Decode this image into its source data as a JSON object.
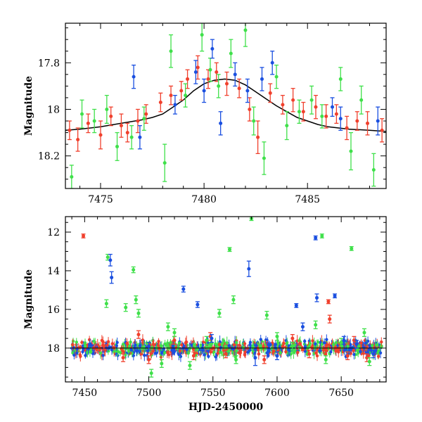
{
  "colors": {
    "red": "#f0402d",
    "green": "#3fe04a",
    "blue": "#1a4fe0",
    "model": "#000000"
  },
  "chart_data": [
    {
      "type": "scatter",
      "title": "",
      "xlabel": "",
      "ylabel": "Magnitude",
      "xlim": [
        7473.3,
        7488.8
      ],
      "ylim": [
        18.34,
        17.63
      ],
      "y_inverted": true,
      "xticks": [
        7475,
        7480,
        7485
      ],
      "yticks": [
        17.8,
        18,
        18.2
      ],
      "xtick_labels": [
        "7475",
        "7480",
        "7485"
      ],
      "ytick_labels": [
        "17.8",
        "18",
        "18.2"
      ],
      "model_curve": {
        "color": "black",
        "points": [
          [
            7473.3,
            18.09
          ],
          [
            7474,
            18.085
          ],
          [
            7475,
            18.075
          ],
          [
            7476,
            18.06
          ],
          [
            7477,
            18.045
          ],
          [
            7477.5,
            18.035
          ],
          [
            7478,
            18.02
          ],
          [
            7478.5,
            17.99
          ],
          [
            7479,
            17.96
          ],
          [
            7479.5,
            17.92
          ],
          [
            7480,
            17.89
          ],
          [
            7480.5,
            17.875
          ],
          [
            7481,
            17.87
          ],
          [
            7481.5,
            17.875
          ],
          [
            7482,
            17.895
          ],
          [
            7482.5,
            17.925
          ],
          [
            7483,
            17.955
          ],
          [
            7483.5,
            17.985
          ],
          [
            7484,
            18.01
          ],
          [
            7484.5,
            18.035
          ],
          [
            7485,
            18.05
          ],
          [
            7485.5,
            18.065
          ],
          [
            7486,
            18.075
          ],
          [
            7487,
            18.085
          ],
          [
            7488,
            18.09
          ],
          [
            7488.8,
            18.095
          ]
        ]
      },
      "series": [
        {
          "color": "red",
          "points": [
            [
              7473.5,
              18.09
            ],
            [
              7473.9,
              18.13
            ],
            [
              7474.4,
              18.06
            ],
            [
              7475.0,
              18.11
            ],
            [
              7475.5,
              18.03
            ],
            [
              7476.0,
              18.07
            ],
            [
              7476.3,
              18.1
            ],
            [
              7476.8,
              18.05
            ],
            [
              7477.2,
              18.02
            ],
            [
              7477.9,
              17.97
            ],
            [
              7478.4,
              17.94
            ],
            [
              7478.9,
              17.92
            ],
            [
              7479.2,
              17.87
            ],
            [
              7479.7,
              17.82
            ],
            [
              7480.2,
              17.87
            ],
            [
              7480.6,
              17.84
            ],
            [
              7481.1,
              17.89
            ],
            [
              7481.7,
              17.91
            ],
            [
              7482.2,
              18.0
            ],
            [
              7482.6,
              18.12
            ],
            [
              7483.2,
              17.93
            ],
            [
              7483.8,
              17.98
            ],
            [
              7484.3,
              17.96
            ],
            [
              7484.8,
              18.01
            ],
            [
              7485.4,
              17.99
            ],
            [
              7485.9,
              18.03
            ],
            [
              7486.4,
              18.02
            ],
            [
              7486.9,
              18.08
            ],
            [
              7487.4,
              18.05
            ],
            [
              7487.9,
              18.06
            ],
            [
              7488.6,
              18.09
            ]
          ],
          "errors": [
            0.04,
            0.05,
            0.04,
            0.06,
            0.04,
            0.05,
            0.04,
            0.05,
            0.04,
            0.04,
            0.04,
            0.04,
            0.04,
            0.05,
            0.04,
            0.04,
            0.05,
            0.04,
            0.05,
            0.07,
            0.04,
            0.04,
            0.05,
            0.04,
            0.05,
            0.05,
            0.04,
            0.05,
            0.04,
            0.05,
            0.05
          ]
        },
        {
          "color": "green",
          "points": [
            [
              7473.6,
              18.29
            ],
            [
              7474.1,
              18.02
            ],
            [
              7474.7,
              18.05
            ],
            [
              7475.3,
              18.0
            ],
            [
              7475.8,
              18.16
            ],
            [
              7476.5,
              18.12
            ],
            [
              7477.1,
              18.04
            ],
            [
              7478.1,
              18.23
            ],
            [
              7478.4,
              17.75
            ],
            [
              7479.1,
              17.94
            ],
            [
              7479.9,
              17.68
            ],
            [
              7480.3,
              17.83
            ],
            [
              7480.7,
              17.9
            ],
            [
              7481.3,
              17.76
            ],
            [
              7482.0,
              17.66
            ],
            [
              7482.4,
              18.05
            ],
            [
              7482.9,
              18.21
            ],
            [
              7483.5,
              17.86
            ],
            [
              7484.0,
              18.07
            ],
            [
              7484.6,
              18.01
            ],
            [
              7485.2,
              17.96
            ],
            [
              7485.7,
              18.03
            ],
            [
              7486.6,
              17.87
            ],
            [
              7487.1,
              18.18
            ],
            [
              7487.6,
              17.96
            ],
            [
              7488.2,
              18.26
            ]
          ],
          "errors": [
            0.05,
            0.06,
            0.05,
            0.06,
            0.06,
            0.05,
            0.05,
            0.08,
            0.07,
            0.05,
            0.07,
            0.05,
            0.05,
            0.06,
            0.07,
            0.06,
            0.07,
            0.05,
            0.06,
            0.05,
            0.06,
            0.05,
            0.05,
            0.08,
            0.06,
            0.07
          ]
        },
        {
          "color": "blue",
          "points": [
            [
              7476.6,
              17.86
            ],
            [
              7476.9,
              18.12
            ],
            [
              7478.6,
              17.98
            ],
            [
              7479.6,
              17.84
            ],
            [
              7480.0,
              17.92
            ],
            [
              7480.4,
              17.74
            ],
            [
              7480.8,
              18.06
            ],
            [
              7481.5,
              17.85
            ],
            [
              7482.1,
              17.92
            ],
            [
              7482.8,
              17.87
            ],
            [
              7483.3,
              17.8
            ],
            [
              7486.2,
              17.99
            ],
            [
              7486.6,
              18.04
            ],
            [
              7488.4,
              18.05
            ]
          ],
          "errors": [
            0.05,
            0.05,
            0.04,
            0.05,
            0.05,
            0.04,
            0.05,
            0.05,
            0.05,
            0.05,
            0.05,
            0.04,
            0.05,
            0.06
          ]
        }
      ]
    },
    {
      "type": "scatter",
      "title": "",
      "xlabel": "HJD-2450000",
      "ylabel": "Magnitude",
      "xlim": [
        7435,
        7685
      ],
      "ylim": [
        19.75,
        11.2
      ],
      "y_inverted": true,
      "xticks": [
        7450,
        7500,
        7550,
        7600,
        7650
      ],
      "yticks": [
        12,
        14,
        16,
        18
      ],
      "xtick_labels": [
        "7450",
        "7500",
        "7550",
        "7600",
        "7650"
      ],
      "ytick_labels": [
        "12",
        "14",
        "16",
        "18"
      ],
      "baseline": {
        "x_range": [
          7440,
          7682
        ],
        "y": 18.0,
        "spread": 0.22
      },
      "series": [
        {
          "color": "red",
          "points": [
            [
              7449,
              12.2
            ],
            [
              7465,
              17.9
            ],
            [
              7480,
              18.5
            ],
            [
              7492,
              17.3
            ],
            [
              7500,
              18.6
            ],
            [
              7520,
              17.6
            ],
            [
              7535,
              18.4
            ],
            [
              7548,
              17.4
            ],
            [
              7560,
              18.3
            ],
            [
              7590,
              18.6
            ],
            [
              7612,
              17.5
            ],
            [
              7625,
              18.3
            ],
            [
              7640,
              15.6
            ],
            [
              7641,
              16.5
            ],
            [
              7655,
              18.4
            ],
            [
              7660,
              17.6
            ],
            [
              7670,
              18.5
            ]
          ],
          "errors": [
            0.1,
            0.2,
            0.2,
            0.2,
            0.2,
            0.2,
            0.2,
            0.2,
            0.2,
            0.2,
            0.2,
            0.2,
            0.1,
            0.2,
            0.2,
            0.2,
            0.2
          ]
        },
        {
          "color": "green",
          "points": [
            [
              7467,
              15.7
            ],
            [
              7468,
              13.3
            ],
            [
              7482,
              15.9
            ],
            [
              7488,
              13.95
            ],
            [
              7490,
              15.5
            ],
            [
              7492,
              16.2
            ],
            [
              7502,
              19.3
            ],
            [
              7510,
              18.8
            ],
            [
              7515,
              16.9
            ],
            [
              7520,
              17.2
            ],
            [
              7532,
              18.9
            ],
            [
              7545,
              17.6
            ],
            [
              7555,
              16.2
            ],
            [
              7563,
              12.9
            ],
            [
              7566,
              15.5
            ],
            [
              7568,
              18.6
            ],
            [
              7580,
              11.3
            ],
            [
              7592,
              16.3
            ],
            [
              7600,
              17.4
            ],
            [
              7612,
              17.9
            ],
            [
              7630,
              16.8
            ],
            [
              7635,
              12.2
            ],
            [
              7638,
              18.6
            ],
            [
              7650,
              17.7
            ],
            [
              7658,
              12.85
            ],
            [
              7668,
              17.2
            ],
            [
              7672,
              18.7
            ]
          ],
          "errors": [
            0.2,
            0.15,
            0.2,
            0.15,
            0.2,
            0.2,
            0.2,
            0.2,
            0.2,
            0.2,
            0.2,
            0.2,
            0.2,
            0.1,
            0.2,
            0.2,
            0.1,
            0.2,
            0.2,
            0.2,
            0.2,
            0.1,
            0.2,
            0.2,
            0.1,
            0.2,
            0.2
          ]
        },
        {
          "color": "blue",
          "points": [
            [
              7470,
              13.45
            ],
            [
              7471,
              14.35
            ],
            [
              7500,
              17.9
            ],
            [
              7527,
              14.95
            ],
            [
              7538,
              15.75
            ],
            [
              7549,
              17.5
            ],
            [
              7578,
              13.9
            ],
            [
              7583,
              18.5
            ],
            [
              7600,
              18.4
            ],
            [
              7615,
              15.8
            ],
            [
              7620,
              16.9
            ],
            [
              7630,
              12.3
            ],
            [
              7631,
              15.4
            ],
            [
              7645,
              15.3
            ],
            [
              7652,
              17.6
            ],
            [
              7662,
              17.8
            ],
            [
              7675,
              18.3
            ]
          ],
          "errors": [
            0.3,
            0.3,
            0.2,
            0.15,
            0.15,
            0.2,
            0.4,
            0.4,
            0.2,
            0.1,
            0.2,
            0.1,
            0.2,
            0.1,
            0.2,
            0.2,
            0.2
          ]
        }
      ]
    }
  ]
}
